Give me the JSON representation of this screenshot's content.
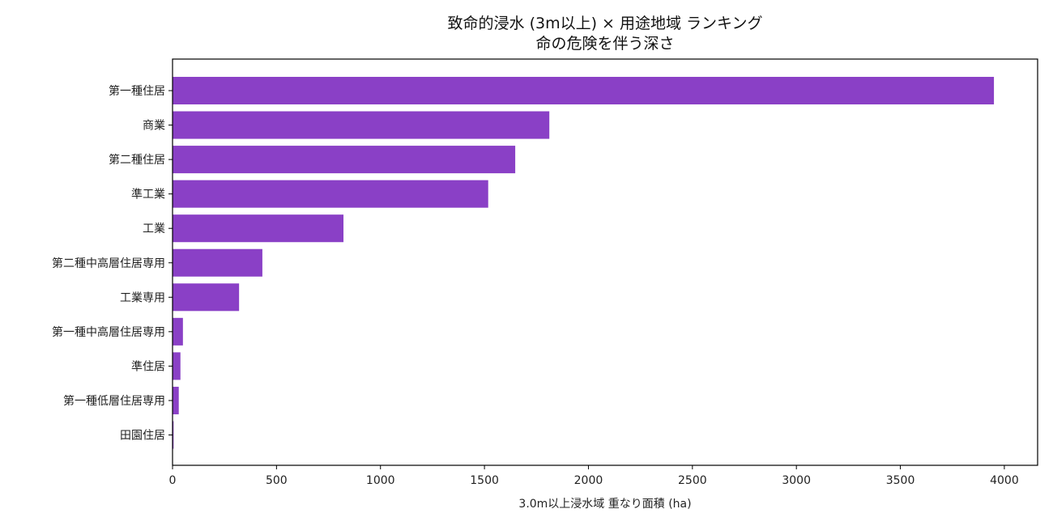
{
  "chart_data": {
    "type": "bar",
    "orientation": "horizontal",
    "title": "致命的浸水 (3m以上) × 用途地域 ランキング",
    "subtitle": "命の危険を伴う深さ",
    "xlabel": "3.0m以上浸水域 重なり面積 (ha)",
    "ylabel": "",
    "categories": [
      "第一種住居",
      "商業",
      "第二種住居",
      "準工業",
      "工業",
      "第二種中高層住居専用",
      "工業専用",
      "第一種中高層住居専用",
      "準住居",
      "第一種低層住居専用",
      "田園住居"
    ],
    "values": [
      3950,
      1812,
      1648,
      1518,
      822,
      432,
      320,
      50,
      38,
      30,
      5
    ],
    "xlim": [
      0,
      4160
    ],
    "xticks": [
      0,
      500,
      1000,
      1500,
      2000,
      2500,
      3000,
      3500,
      4000
    ],
    "xtick_labels": [
      "0",
      "500",
      "1000",
      "1500",
      "2000",
      "2500",
      "3000",
      "3500",
      "4000"
    ],
    "grid": false,
    "color": "#8A40C6"
  }
}
